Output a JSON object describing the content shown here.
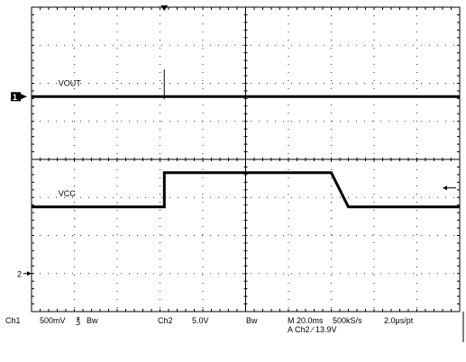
{
  "chart_data": {
    "type": "line",
    "xlabel": "",
    "ylabel": "",
    "grid": true,
    "x_divisions": 10,
    "y_divisions": 8,
    "time_per_div_ms": 20.0,
    "trigger_position_div": 3.1,
    "series": [
      {
        "name": "VOUT",
        "channel": "Ch1",
        "marker": "1",
        "x_div": [
          0,
          10
        ],
        "y_div": [
          5.65,
          5.65
        ],
        "glitch_at_div": 3.1
      },
      {
        "name": "VCC",
        "channel": "Ch2",
        "marker": "2",
        "x_div": [
          0,
          3.1,
          3.1,
          7.0,
          7.4,
          10
        ],
        "y_div": [
          2.75,
          2.75,
          3.65,
          3.65,
          2.75,
          2.75
        ]
      }
    ],
    "markers": {
      "ch1": "1",
      "ch2": "2"
    }
  },
  "status": {
    "ch1_label": "Ch1",
    "ch1_scale": "500mV",
    "ch1_coupling": "℥",
    "ch1_bw": "Bw",
    "ch2_label": "Ch2",
    "ch2_scale": "5.0V",
    "ch2_bw": "Bw",
    "timebase": "M 20.0ms",
    "sample_rate": "500kS/s",
    "record": "2.0μs/pt",
    "trigger": "A  Ch2  ∕  13.9V"
  },
  "colors": {
    "trace": "#000000",
    "grid": "#000000",
    "background": "#ffffff"
  }
}
